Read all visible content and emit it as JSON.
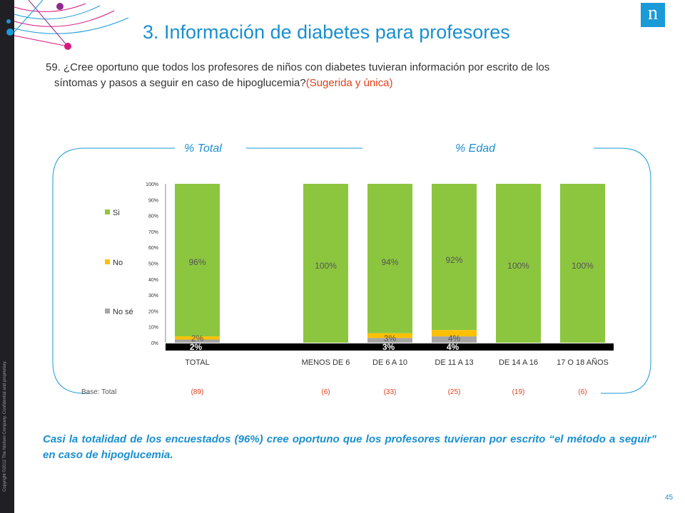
{
  "slide": {
    "title": "3. Información de diabetes para profesores",
    "question_line1": "59. ¿Cree oportuno que todos los profesores de niños con diabetes tuvieran información por escrito de los",
    "question_line2": "síntomas y pasos a seguir en caso de hipoglucemia?",
    "question_highlight": "(Sugerida y única)",
    "panel_total": "% Total",
    "panel_edad": "% Edad",
    "conclusion": "Casi la totalidad de los encuestados (96%) cree oportuno que los profesores tuvieran por escrito “el método a seguir” en caso de hipoglucemia.",
    "page_number": "45",
    "logo": "n",
    "copyright": "Copyright ©2012 The Nielsen Company. Confidential and proprietary."
  },
  "chart_data": {
    "type": "bar",
    "stacked": true,
    "categories": [
      "TOTAL",
      "MENOS DE 6",
      "DE 6 A 10",
      "DE 11 A 13",
      "DE 14 A 16",
      "17 O 18 AÑOS"
    ],
    "bases": [
      "(89)",
      "(6)",
      "(33)",
      "(25)",
      "(19)",
      "(6)"
    ],
    "base_label": "Base: Total",
    "series": [
      {
        "name": "No sé",
        "color": "#a6a6a6",
        "values": [
          2,
          0,
          3,
          4,
          0,
          0
        ],
        "labels": [
          "2%",
          "",
          "3%",
          "4%",
          "",
          ""
        ]
      },
      {
        "name": "No",
        "color": "#ffc000",
        "values": [
          2,
          0,
          3,
          4,
          0,
          0
        ],
        "labels": [
          "2%",
          "",
          "3%",
          "4%",
          "",
          ""
        ]
      },
      {
        "name": "Si",
        "color": "#8cc63f",
        "values": [
          96,
          100,
          94,
          92,
          100,
          100
        ],
        "labels": [
          "96%",
          "100%",
          "94%",
          "92%",
          "100%",
          "100%"
        ]
      }
    ],
    "legend": [
      "Si",
      "No",
      "No sé"
    ],
    "legend_position": "left",
    "ytick_labels": [
      "0%",
      "10%",
      "20%",
      "30%",
      "40%",
      "50%",
      "60%",
      "70%",
      "80%",
      "90%",
      "100%"
    ],
    "ylim": [
      0,
      100
    ]
  }
}
